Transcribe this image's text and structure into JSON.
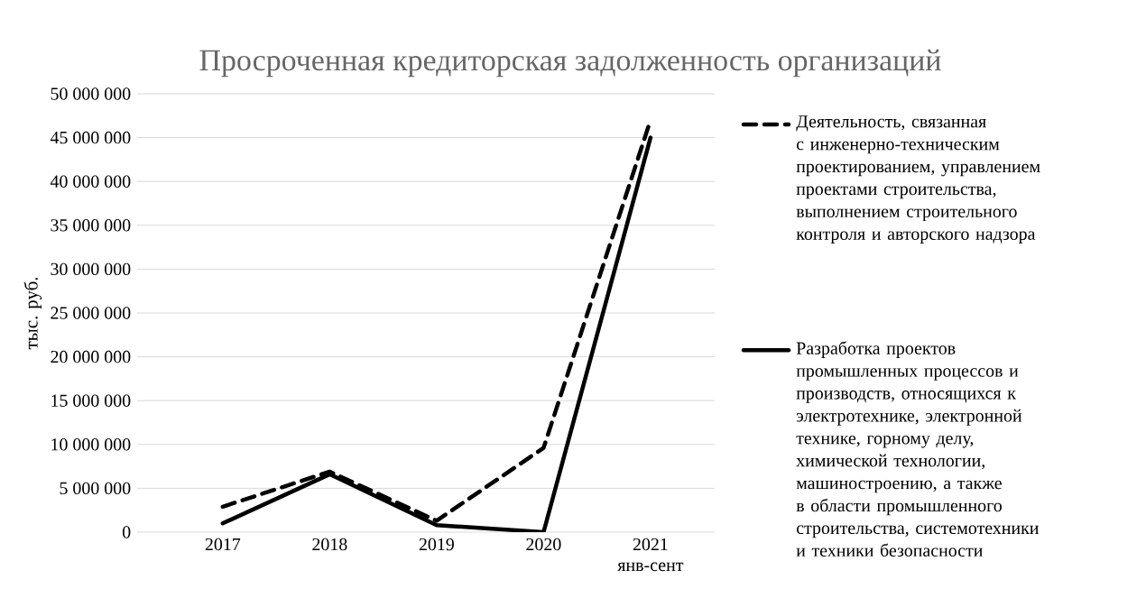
{
  "chart_data": {
    "type": "line",
    "title": "Просроченная кредиторская задолженность организаций",
    "ylabel": "тыс. руб.",
    "categories": [
      "2017",
      "2018",
      "2019",
      "2020",
      "2021 янв-сент"
    ],
    "series": [
      {
        "name": "Деятельность, связанная с инженерно-техническим проектированием, управлением проектами строительства, выполнением строительного контроля и авторского надзора",
        "color": "#000000",
        "line_style": "dashed",
        "values": [
          2900000,
          6900000,
          1300000,
          9600000,
          47000000
        ]
      },
      {
        "name": "Разработка проектов промышленных процессов и производств, относящихся к электротехнике, электронной технике, горному делу, химической технологии, машиностроению, а также в области промышленного строительства, системотехники и техники безопасности",
        "color": "#000000",
        "line_style": "solid",
        "values": [
          1000000,
          6600000,
          800000,
          0,
          45000000
        ]
      }
    ],
    "ylim": [
      0,
      50000000
    ],
    "yticks": [
      {
        "value": 0,
        "label": "0"
      },
      {
        "value": 5000000,
        "label": "5 000 000"
      },
      {
        "value": 10000000,
        "label": "10 000 000"
      },
      {
        "value": 15000000,
        "label": "15 000 000"
      },
      {
        "value": 20000000,
        "label": "20 000 000"
      },
      {
        "value": 25000000,
        "label": "25 000 000"
      },
      {
        "value": 30000000,
        "label": "30 000 000"
      },
      {
        "value": 35000000,
        "label": "35 000 000"
      },
      {
        "value": 40000000,
        "label": "40 000 000"
      },
      {
        "value": 45000000,
        "label": "45 000 000"
      },
      {
        "value": 50000000,
        "label": "50 000 000"
      }
    ],
    "grid": "y",
    "legend": "right",
    "marker": "none"
  }
}
